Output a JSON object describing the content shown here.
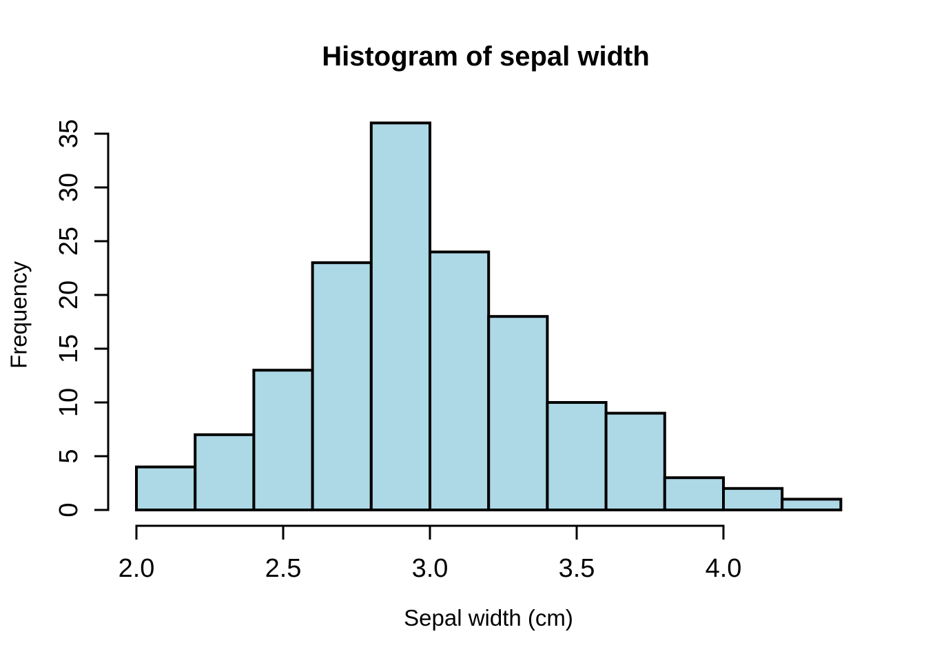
{
  "chart_data": {
    "type": "bar",
    "subtype": "histogram",
    "title": "Histogram of sepal width",
    "xlabel": "Sepal width (cm)",
    "ylabel": "Frequency",
    "bin_edges": [
      2.0,
      2.2,
      2.4,
      2.6,
      2.8,
      3.0,
      3.2,
      3.4,
      3.6,
      3.8,
      4.0,
      4.2,
      4.4
    ],
    "counts": [
      4,
      7,
      13,
      23,
      36,
      24,
      18,
      10,
      9,
      3,
      2,
      1
    ],
    "x_tick_values": [
      2.0,
      2.5,
      3.0,
      3.5,
      4.0
    ],
    "x_tick_labels": [
      "2.0",
      "2.5",
      "3.0",
      "3.5",
      "4.0"
    ],
    "y_tick_values": [
      0,
      5,
      10,
      15,
      20,
      25,
      30,
      35
    ],
    "y_tick_labels": [
      "0",
      "5",
      "10",
      "15",
      "20",
      "25",
      "30",
      "35"
    ],
    "xlim": [
      2.0,
      4.4
    ],
    "ylim": [
      0,
      36
    ],
    "grid": false,
    "legend": "none",
    "bar_fill": "#ADD8E6",
    "bar_stroke": "#000000",
    "axis_color": "#000000",
    "text_color": "#000000",
    "background": "#FFFFFF"
  }
}
